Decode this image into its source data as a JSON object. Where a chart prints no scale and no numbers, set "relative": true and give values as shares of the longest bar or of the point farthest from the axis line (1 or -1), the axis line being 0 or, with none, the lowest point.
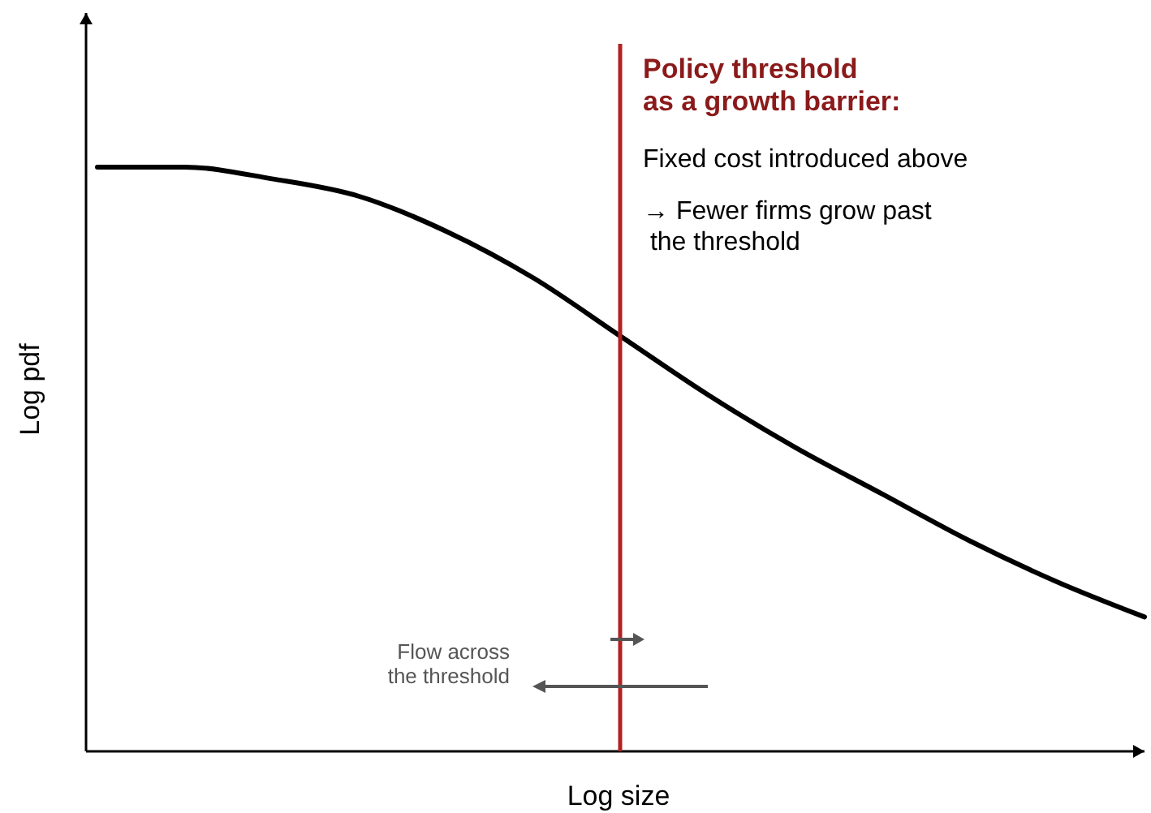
{
  "chart_data": {
    "type": "line",
    "relative": true,
    "xlabel": "Log size",
    "ylabel": "Log pdf",
    "categories": [
      null,
      null,
      null,
      null,
      null,
      null,
      null,
      null,
      null,
      null,
      null,
      null,
      null
    ],
    "series": [
      {
        "color": "#000000",
        "values": [
          1,
          1,
          0.98,
          0.95,
          0.89,
          0.81,
          0.71,
          0.61,
          0.52,
          0.44,
          0.36,
          0.29,
          0.23
        ]
      }
    ],
    "annotations": [
      "Policy threshold\nas a growth barrier:",
      "Fixed cost introduced above",
      "→  Fewer firms grow past\n     the threshold",
      "Flow across\nthe threshold"
    ]
  }
}
